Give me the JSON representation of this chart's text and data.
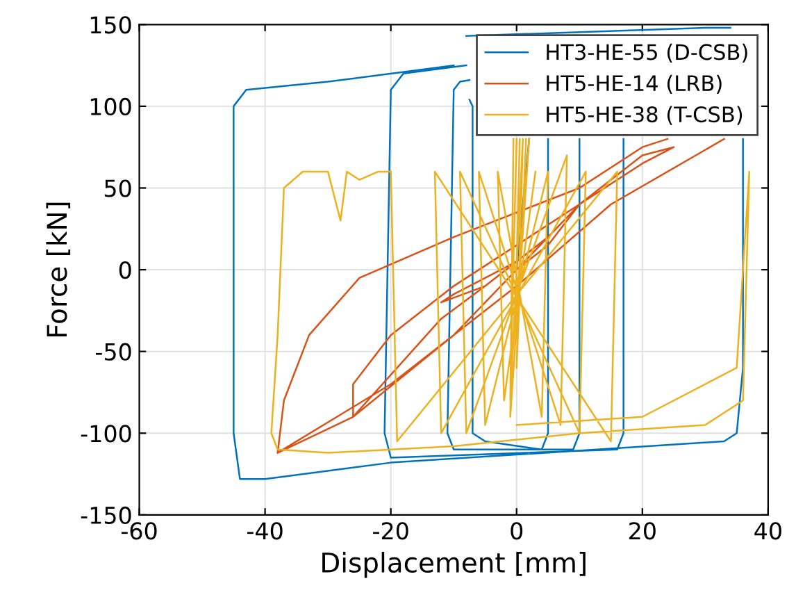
{
  "chart_data": {
    "type": "line",
    "xlabel": "Displacement [mm]",
    "ylabel": "Force [kN]",
    "xlim": [
      -60,
      40
    ],
    "ylim": [
      -150,
      150
    ],
    "xticks": [
      -60,
      -40,
      -20,
      0,
      20,
      40
    ],
    "yticks": [
      -150,
      -100,
      -50,
      0,
      50,
      100,
      150
    ],
    "grid": true,
    "legend": "top right",
    "marker": "none",
    "line_style": "solid",
    "series": [
      {
        "name": "HT3-HE-55 (D-CSB)",
        "color": "#0072bd",
        "x": [
          0,
          2,
          null,
          5,
          5,
          4,
          -5,
          -7,
          -7,
          -7.5,
          null,
          10,
          10,
          9,
          -10,
          -11,
          -10,
          -9,
          -7.5,
          null,
          17,
          17,
          16,
          -20,
          -21,
          -20,
          -18,
          -8,
          null,
          -8,
          30,
          34,
          null,
          36,
          36,
          35,
          33,
          -20,
          -40,
          -44,
          -45,
          -45,
          -43,
          -30,
          -10
        ],
        "values": [
          0,
          80,
          null,
          80,
          -100,
          -110,
          -105,
          -100,
          100,
          104,
          null,
          80,
          -100,
          -110,
          -110,
          -100,
          110,
          115,
          116,
          null,
          80,
          -100,
          -110,
          -115,
          -100,
          110,
          120,
          125,
          null,
          143,
          148,
          148,
          null,
          80,
          -60,
          -100,
          -105,
          -118,
          -128,
          -128,
          -100,
          100,
          110,
          115,
          125
        ]
      },
      {
        "name": "HT5-HE-14 (LRB)",
        "color": "#d95319",
        "x": [
          0,
          5,
          10,
          5,
          -5,
          -12,
          -10,
          0,
          -5,
          -12,
          -26,
          -26,
          -20,
          -10,
          10,
          20,
          25,
          20,
          10,
          -10,
          -26,
          -38,
          -37,
          -33,
          -25,
          -10,
          10,
          20,
          24,
          null,
          33,
          15,
          0,
          -20,
          -38
        ],
        "values": [
          0,
          15,
          40,
          20,
          -10,
          -20,
          -15,
          5,
          -10,
          -30,
          -90,
          -70,
          -40,
          -10,
          40,
          70,
          75,
          65,
          40,
          -40,
          -90,
          -112,
          -80,
          -40,
          -5,
          20,
          50,
          75,
          80,
          null,
          80,
          40,
          -10,
          -70,
          -112
        ]
      },
      {
        "name": "HT5-HE-38 (T-CSB)",
        "color": "#edb120",
        "x": [
          0,
          0.5,
          null,
          1,
          -1,
          -0.5,
          null,
          2,
          -1,
          -0.5,
          null,
          1,
          0,
          1.5,
          null,
          2,
          -1,
          0,
          null,
          3,
          -2,
          -3,
          4,
          5,
          -5,
          -6,
          7,
          8,
          -8,
          -9,
          10,
          11,
          -12,
          -13,
          15,
          16,
          -19,
          -20,
          -22,
          -25,
          -27,
          -28,
          -30,
          -34,
          -37,
          -38,
          -39,
          -38,
          -30,
          -10,
          10,
          30,
          36,
          37,
          35,
          20,
          0
        ],
        "values": [
          0,
          80,
          null,
          80,
          -80,
          80,
          null,
          80,
          -90,
          80,
          null,
          80,
          -60,
          80,
          null,
          80,
          -70,
          80,
          null,
          60,
          -80,
          60,
          -90,
          60,
          -95,
          60,
          -95,
          70,
          -100,
          60,
          -100,
          60,
          -100,
          60,
          -105,
          60,
          -105,
          60,
          60,
          55,
          60,
          30,
          60,
          60,
          50,
          -40,
          -100,
          -110,
          -112,
          -108,
          -100,
          -95,
          -80,
          60,
          -60,
          -90,
          -95
        ]
      }
    ]
  }
}
